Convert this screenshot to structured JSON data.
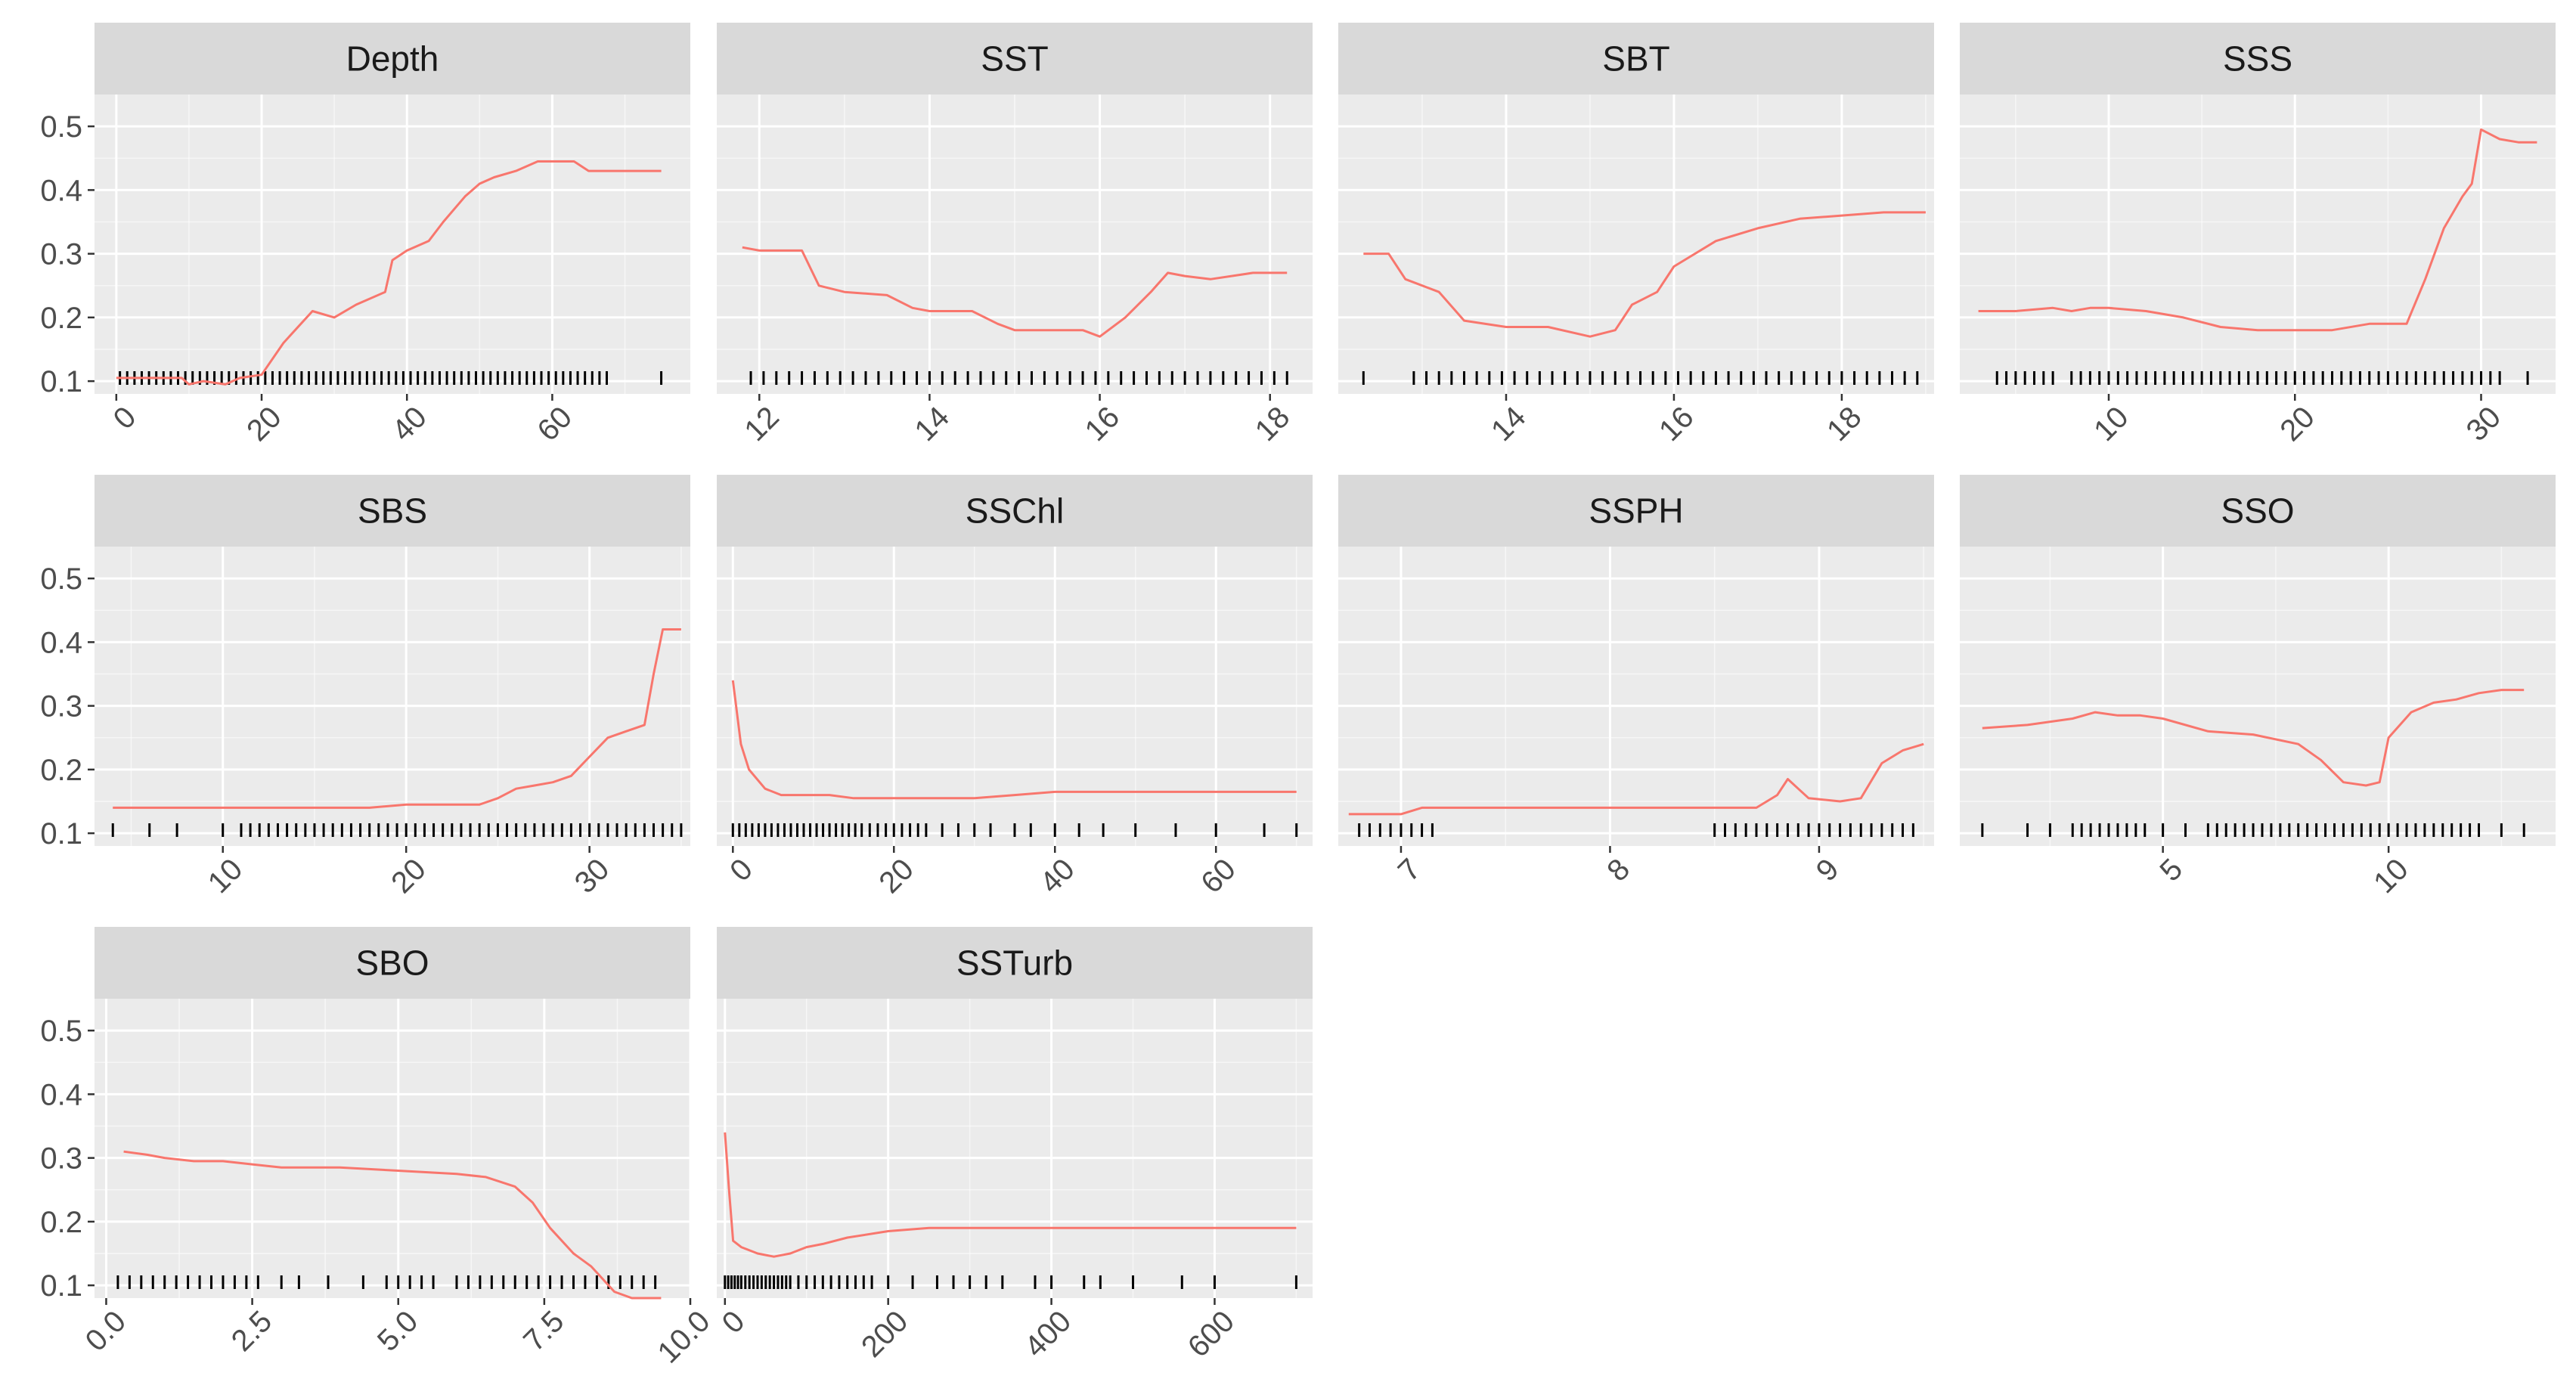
{
  "colors": {
    "panel_bg": "#ebebeb",
    "strip_bg": "#d9d9d9",
    "grid_major": "#ffffff",
    "line": "#f8766d",
    "rug": "#000000",
    "text": "#4d4d4d"
  },
  "chart_data": [
    {
      "type": "line",
      "facet": "Depth",
      "ylim": [
        0.08,
        0.55
      ],
      "yticks": [
        0.1,
        0.2,
        0.3,
        0.4,
        0.5
      ],
      "xlim": [
        -3,
        79
      ],
      "xticks": [
        0,
        20,
        40,
        60
      ],
      "x": [
        0,
        5,
        9,
        10,
        12,
        15,
        17,
        20,
        23,
        27,
        30,
        33,
        37,
        38,
        40,
        43,
        45,
        48,
        50,
        52,
        55,
        58,
        60,
        63,
        65,
        70,
        75
      ],
      "y": [
        0.105,
        0.105,
        0.105,
        0.095,
        0.1,
        0.095,
        0.105,
        0.11,
        0.16,
        0.21,
        0.2,
        0.22,
        0.24,
        0.29,
        0.305,
        0.32,
        0.35,
        0.39,
        0.41,
        0.42,
        0.43,
        0.445,
        0.445,
        0.445,
        0.43,
        0.43,
        0.43
      ],
      "rug": [
        0.5,
        1.5,
        2.5,
        3.5,
        4.5,
        5.5,
        6.5,
        7.5,
        8.5,
        9.5,
        10.5,
        11.5,
        12.5,
        13.5,
        14.5,
        15.5,
        16.5,
        17.5,
        18.5,
        19.5,
        20.5,
        21.5,
        22.5,
        23.5,
        24.5,
        25.5,
        26.5,
        27.5,
        28.5,
        29.5,
        30.5,
        31.5,
        32.5,
        33.5,
        34.5,
        35.5,
        36.5,
        37.5,
        38.5,
        39.5,
        40.5,
        41.5,
        42.5,
        43.5,
        44.5,
        45.5,
        46.5,
        47.5,
        48.5,
        49.5,
        50.5,
        51.5,
        52.5,
        53.5,
        54.5,
        55.5,
        56.5,
        57.5,
        58.5,
        59.5,
        60.5,
        61.5,
        62.5,
        63.5,
        64.5,
        65.5,
        66.5,
        67.5,
        75
      ]
    },
    {
      "type": "line",
      "facet": "SST",
      "ylim": [
        0.08,
        0.55
      ],
      "yticks": [
        0.1,
        0.2,
        0.3,
        0.4,
        0.5
      ],
      "xlim": [
        11.5,
        18.5
      ],
      "xticks": [
        12,
        14,
        16,
        18
      ],
      "x": [
        11.8,
        12.0,
        12.5,
        12.7,
        13.0,
        13.5,
        13.8,
        14.0,
        14.5,
        14.8,
        15.0,
        15.5,
        15.8,
        16.0,
        16.3,
        16.6,
        16.8,
        17.0,
        17.3,
        17.8,
        18.2
      ],
      "y": [
        0.31,
        0.305,
        0.305,
        0.25,
        0.24,
        0.235,
        0.215,
        0.21,
        0.21,
        0.19,
        0.18,
        0.18,
        0.18,
        0.17,
        0.2,
        0.24,
        0.27,
        0.265,
        0.26,
        0.27,
        0.27
      ],
      "rug": [
        11.9,
        12.05,
        12.2,
        12.35,
        12.5,
        12.65,
        12.8,
        12.95,
        13.1,
        13.25,
        13.4,
        13.55,
        13.7,
        13.85,
        14.0,
        14.15,
        14.3,
        14.45,
        14.6,
        14.75,
        14.9,
        15.05,
        15.2,
        15.35,
        15.5,
        15.65,
        15.8,
        15.95,
        16.1,
        16.25,
        16.4,
        16.55,
        16.7,
        16.85,
        17.0,
        17.15,
        17.3,
        17.45,
        17.6,
        17.75,
        17.9,
        18.05,
        18.2
      ]
    },
    {
      "type": "line",
      "facet": "SBT",
      "ylim": [
        0.08,
        0.55
      ],
      "yticks": [
        0.1,
        0.2,
        0.3,
        0.4,
        0.5
      ],
      "xlim": [
        12.0,
        19.1
      ],
      "xticks": [
        14,
        16,
        18
      ],
      "x": [
        12.3,
        12.6,
        12.8,
        13.2,
        13.5,
        14.0,
        14.5,
        15.0,
        15.3,
        15.5,
        15.8,
        16.0,
        16.5,
        17.0,
        17.5,
        18.0,
        18.5,
        19.0
      ],
      "y": [
        0.3,
        0.3,
        0.26,
        0.24,
        0.195,
        0.185,
        0.185,
        0.17,
        0.18,
        0.22,
        0.24,
        0.28,
        0.32,
        0.34,
        0.355,
        0.36,
        0.365,
        0.365
      ],
      "rug": [
        12.3,
        12.9,
        13.05,
        13.2,
        13.35,
        13.5,
        13.65,
        13.8,
        13.95,
        14.1,
        14.25,
        14.4,
        14.55,
        14.7,
        14.85,
        15.0,
        15.15,
        15.3,
        15.45,
        15.6,
        15.75,
        15.9,
        16.05,
        16.2,
        16.35,
        16.5,
        16.65,
        16.8,
        16.95,
        17.1,
        17.25,
        17.4,
        17.55,
        17.7,
        17.85,
        18.0,
        18.15,
        18.3,
        18.45,
        18.6,
        18.75,
        18.9
      ]
    },
    {
      "type": "line",
      "facet": "SSS",
      "ylim": [
        0.08,
        0.55
      ],
      "yticks": [
        0.1,
        0.2,
        0.3,
        0.4,
        0.5
      ],
      "xlim": [
        2,
        34
      ],
      "xticks": [
        10,
        20,
        30
      ],
      "x": [
        3,
        5,
        7,
        8,
        9,
        10,
        12,
        14,
        16,
        18,
        20,
        22,
        24,
        25,
        26,
        27,
        28,
        29,
        29.5,
        30,
        31,
        32,
        33
      ],
      "y": [
        0.21,
        0.21,
        0.215,
        0.21,
        0.215,
        0.215,
        0.21,
        0.2,
        0.185,
        0.18,
        0.18,
        0.18,
        0.19,
        0.19,
        0.19,
        0.26,
        0.34,
        0.39,
        0.41,
        0.495,
        0.48,
        0.475,
        0.475
      ],
      "rug": [
        4,
        4.5,
        5,
        5.5,
        6,
        6.5,
        7,
        8,
        8.5,
        9,
        9.5,
        10,
        10.5,
        11,
        11.5,
        12,
        12.5,
        13,
        13.5,
        14,
        14.5,
        15,
        15.5,
        16,
        16.5,
        17,
        17.5,
        18,
        18.5,
        19,
        19.5,
        20,
        20.5,
        21,
        21.5,
        22,
        22.5,
        23,
        23.5,
        24,
        24.5,
        25,
        25.5,
        26,
        26.5,
        27,
        27.5,
        28,
        28.5,
        29,
        29.5,
        30,
        30.5,
        31,
        32.5
      ]
    },
    {
      "type": "line",
      "facet": "SBS",
      "ylim": [
        0.08,
        0.55
      ],
      "yticks": [
        0.1,
        0.2,
        0.3,
        0.4,
        0.5
      ],
      "xlim": [
        3,
        35.5
      ],
      "xticks": [
        10,
        20,
        30
      ],
      "x": [
        4,
        10,
        15,
        18,
        20,
        22,
        24,
        25,
        26,
        27,
        28,
        29,
        30,
        31,
        32,
        33,
        33.5,
        34,
        35
      ],
      "y": [
        0.14,
        0.14,
        0.14,
        0.14,
        0.145,
        0.145,
        0.145,
        0.155,
        0.17,
        0.175,
        0.18,
        0.19,
        0.22,
        0.25,
        0.26,
        0.27,
        0.35,
        0.42,
        0.42
      ],
      "rug": [
        4,
        6,
        7.5,
        10,
        11,
        11.5,
        12,
        12.5,
        13,
        13.5,
        14,
        14.5,
        15,
        15.5,
        16,
        16.5,
        17,
        17.5,
        18,
        18.5,
        19,
        19.5,
        20,
        20.5,
        21,
        21.5,
        22,
        22.5,
        23,
        23.5,
        24,
        24.5,
        25,
        25.5,
        26,
        26.5,
        27,
        27.5,
        28,
        28.5,
        29,
        29.5,
        30,
        30.5,
        31,
        31.5,
        32,
        32.5,
        33,
        33.5,
        34,
        34.5,
        35
      ]
    },
    {
      "type": "line",
      "facet": "SSChl",
      "ylim": [
        0.08,
        0.55
      ],
      "yticks": [
        0.1,
        0.2,
        0.3,
        0.4,
        0.5
      ],
      "xlim": [
        -2,
        72
      ],
      "xticks": [
        0,
        20,
        40,
        60
      ],
      "x": [
        0,
        1,
        2,
        4,
        6,
        8,
        10,
        12,
        15,
        20,
        25,
        30,
        35,
        40,
        50,
        60,
        70
      ],
      "y": [
        0.34,
        0.24,
        0.2,
        0.17,
        0.16,
        0.16,
        0.16,
        0.16,
        0.155,
        0.155,
        0.155,
        0.155,
        0.16,
        0.165,
        0.165,
        0.165,
        0.165
      ],
      "rug": [
        0,
        0.8,
        1.6,
        2.4,
        3.2,
        4,
        4.8,
        5.6,
        6.4,
        7.2,
        8,
        8.8,
        9.6,
        10.4,
        11.2,
        12,
        12.8,
        13.6,
        14.4,
        15.2,
        16,
        17,
        18,
        19,
        20,
        21,
        22,
        23,
        24,
        26,
        28,
        30,
        32,
        35,
        37,
        40,
        43,
        46,
        50,
        55,
        60,
        66,
        70
      ]
    },
    {
      "type": "line",
      "facet": "SSPH",
      "ylim": [
        0.08,
        0.55
      ],
      "yticks": [
        0.1,
        0.2,
        0.3,
        0.4,
        0.5
      ],
      "xlim": [
        6.7,
        9.55
      ],
      "xticks": [
        7,
        8,
        9
      ],
      "x": [
        6.75,
        7.0,
        7.1,
        7.5,
        8.0,
        8.5,
        8.7,
        8.8,
        8.85,
        8.9,
        8.95,
        9.1,
        9.2,
        9.3,
        9.4,
        9.5
      ],
      "y": [
        0.13,
        0.13,
        0.14,
        0.14,
        0.14,
        0.14,
        0.14,
        0.16,
        0.185,
        0.17,
        0.155,
        0.15,
        0.155,
        0.21,
        0.23,
        0.24
      ],
      "rug": [
        6.8,
        6.85,
        6.9,
        6.95,
        7.0,
        7.05,
        7.1,
        7.15,
        8.5,
        8.55,
        8.6,
        8.65,
        8.7,
        8.75,
        8.8,
        8.85,
        8.9,
        8.95,
        9.0,
        9.05,
        9.1,
        9.15,
        9.2,
        9.25,
        9.3,
        9.35,
        9.4,
        9.45
      ]
    },
    {
      "type": "line",
      "facet": "SSO",
      "ylim": [
        0.08,
        0.55
      ],
      "yticks": [
        0.1,
        0.2,
        0.3,
        0.4,
        0.5
      ],
      "xlim": [
        0.5,
        13.7
      ],
      "xticks": [
        5,
        10
      ],
      "x": [
        1,
        2,
        3,
        3.5,
        4,
        4.5,
        5,
        6,
        7,
        8,
        8.5,
        9,
        9.5,
        9.8,
        10,
        10.5,
        11,
        11.5,
        12,
        12.5,
        13
      ],
      "y": [
        0.265,
        0.27,
        0.28,
        0.29,
        0.285,
        0.285,
        0.28,
        0.26,
        0.255,
        0.24,
        0.215,
        0.18,
        0.175,
        0.18,
        0.25,
        0.29,
        0.305,
        0.31,
        0.32,
        0.325,
        0.325
      ],
      "rug": [
        1,
        2,
        2.5,
        3,
        3.2,
        3.4,
        3.6,
        3.8,
        4,
        4.2,
        4.4,
        4.6,
        5,
        5.5,
        6,
        6.2,
        6.4,
        6.6,
        6.8,
        7,
        7.2,
        7.4,
        7.6,
        7.8,
        8,
        8.2,
        8.4,
        8.6,
        8.8,
        9,
        9.2,
        9.4,
        9.6,
        9.8,
        10,
        10.2,
        10.4,
        10.6,
        10.8,
        11,
        11.2,
        11.4,
        11.6,
        11.8,
        12,
        12.5,
        13
      ]
    },
    {
      "type": "line",
      "facet": "SBO",
      "ylim": [
        0.08,
        0.55
      ],
      "yticks": [
        0.1,
        0.2,
        0.3,
        0.4,
        0.5
      ],
      "xlim": [
        -0.2,
        10.0
      ],
      "xticks": [
        0.0,
        2.5,
        5.0,
        7.5,
        10.0
      ],
      "xtick_labels": [
        "0.0",
        "2.5",
        "5.0",
        "7.5",
        "10.0"
      ],
      "x": [
        0.3,
        0.7,
        1.0,
        1.5,
        2.0,
        2.5,
        3.0,
        4.0,
        5.0,
        6.0,
        6.5,
        7.0,
        7.3,
        7.6,
        8.0,
        8.3,
        8.7,
        9.0,
        9.5
      ],
      "y": [
        0.31,
        0.305,
        0.3,
        0.295,
        0.295,
        0.29,
        0.285,
        0.285,
        0.28,
        0.275,
        0.27,
        0.255,
        0.23,
        0.19,
        0.15,
        0.13,
        0.09,
        0.08,
        0.08
      ],
      "rug": [
        0.2,
        0.4,
        0.6,
        0.8,
        1.0,
        1.2,
        1.4,
        1.6,
        1.8,
        2.0,
        2.2,
        2.4,
        2.6,
        3.0,
        3.3,
        3.8,
        4.4,
        4.8,
        5.0,
        5.2,
        5.4,
        5.6,
        6.0,
        6.2,
        6.4,
        6.6,
        6.8,
        7.0,
        7.2,
        7.4,
        7.6,
        7.8,
        8.0,
        8.2,
        8.4,
        8.6,
        8.8,
        9.0,
        9.2,
        9.4
      ]
    },
    {
      "type": "line",
      "facet": "SSTurb",
      "ylim": [
        0.08,
        0.55
      ],
      "yticks": [
        0.1,
        0.2,
        0.3,
        0.4,
        0.5
      ],
      "xlim": [
        -10,
        720
      ],
      "xticks": [
        0,
        200,
        400,
        600
      ],
      "x": [
        0,
        5,
        10,
        20,
        40,
        60,
        80,
        100,
        120,
        150,
        200,
        250,
        300,
        400,
        500,
        600,
        700
      ],
      "y": [
        0.34,
        0.25,
        0.17,
        0.16,
        0.15,
        0.145,
        0.15,
        0.16,
        0.165,
        0.175,
        0.185,
        0.19,
        0.19,
        0.19,
        0.19,
        0.19,
        0.19
      ],
      "rug": [
        0,
        4,
        8,
        12,
        16,
        20,
        25,
        30,
        35,
        40,
        45,
        50,
        55,
        60,
        65,
        70,
        75,
        80,
        90,
        100,
        110,
        120,
        130,
        140,
        150,
        160,
        170,
        180,
        200,
        230,
        260,
        280,
        300,
        320,
        340,
        380,
        400,
        440,
        460,
        500,
        560,
        600,
        700
      ]
    }
  ]
}
